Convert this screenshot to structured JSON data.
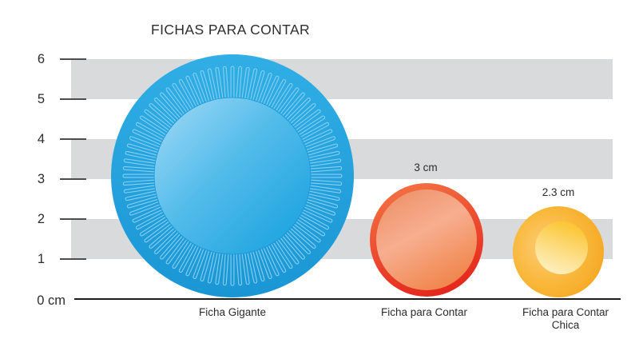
{
  "title": "FICHAS PARA CONTAR",
  "axis": {
    "zero_label": "0 cm",
    "ticks": [
      "6",
      "5",
      "4",
      "3",
      "2",
      "1"
    ],
    "unit": "cm",
    "max": 6
  },
  "chips": [
    {
      "id": "ficha-gigante",
      "label_line1": "Ficha Gigante",
      "label_line2": "",
      "size_label": "",
      "color": "#29a8e0"
    },
    {
      "id": "ficha-para-contar",
      "label_line1": "Ficha para Contar",
      "label_line2": "",
      "size_label": "3 cm",
      "color": "#e8402b"
    },
    {
      "id": "ficha-para-contar-chica",
      "label_line1": "Ficha para Contar",
      "label_line2": "Chica",
      "size_label": "2.3 cm",
      "color": "#f6a821"
    }
  ],
  "colors": {
    "band_gray": "#d9dadb",
    "axis_line": "#1c1c1c",
    "tick_line": "#4d4d4d",
    "text": "#2b2b2b",
    "blue_ring": "#29a8e0",
    "blue_face_light": "#a3daf6",
    "blue_face_dark": "#139fde",
    "orange_rim_top": "#f37243",
    "orange_rim_bottom": "#e5261c",
    "orange_face": "#f7ae8f",
    "yellow_ring": "#f5a41e",
    "yellow_face_light": "#fdf0c2",
    "yellow_face_gold": "#fbc634"
  },
  "chart_data": {
    "type": "other",
    "subtype": "pictorial size comparison of circular counting chips on a cm scale",
    "title": "FICHAS PARA CONTAR",
    "categories": [
      "Ficha Gigante",
      "Ficha para Contar",
      "Ficha para Contar Chica"
    ],
    "values_diameter_cm": [
      6.1,
      3,
      2.3
    ],
    "value_labels": [
      "",
      "3 cm",
      "2.3 cm"
    ],
    "ylabel": "cm",
    "ylim": [
      0,
      6
    ],
    "yticks": [
      0,
      1,
      2,
      3,
      4,
      5,
      6
    ],
    "grid": "alternating light-gray horizontal bands between 1-2, 3-4 and 5-6 cm",
    "legend": "none"
  }
}
